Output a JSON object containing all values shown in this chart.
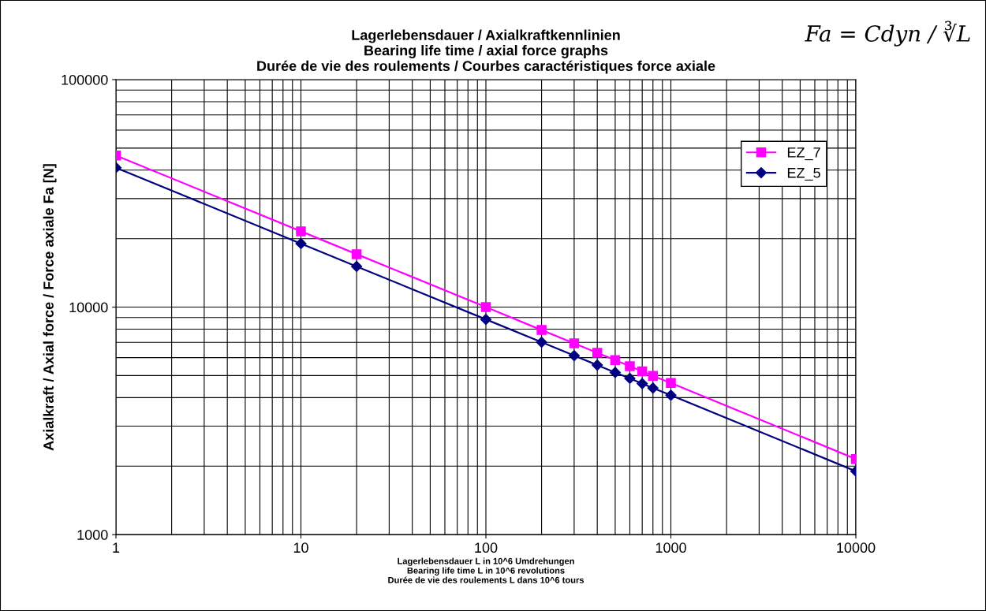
{
  "chart_data": {
    "type": "line",
    "title": "Lagerlebensdauer / Axialkraftkennlinien\nBearing life time / axial force graphs\nDurée de vie des roulements / Courbes caractéristiques force axiale",
    "xlabel": "Lagerlebensdauer L in 10^6 Umdrehungen\nBearing life time L in 10^6 revolutions\nDurée de vie des roulements L dans 10^6 tours",
    "ylabel": "Axialkraft / Axial force / Force axiale Fa [N]",
    "annotations": [
      "Fa = Cdyn / ∛L"
    ],
    "x": [
      1,
      10,
      20,
      100,
      200,
      300,
      400,
      500,
      600,
      700,
      800,
      1000,
      10000
    ],
    "series": [
      {
        "name": "EZ_7",
        "color": "#ff00ff",
        "marker": "square",
        "values": [
          46400,
          21540,
          17090,
          10000,
          7930,
          6930,
          6300,
          5850,
          5500,
          5220,
          4990,
          4640,
          2150
        ]
      },
      {
        "name": "EZ_5",
        "color": "#000080",
        "marker": "diamond",
        "values": [
          41000,
          19030,
          15100,
          8830,
          7010,
          6120,
          5560,
          5160,
          4860,
          4610,
          4410,
          4100,
          1900
        ]
      }
    ],
    "log": "xy",
    "xlim": [
      1,
      10000
    ],
    "ylim": [
      1000,
      100000
    ],
    "xticks": [
      1,
      10,
      100,
      1000,
      10000
    ],
    "yticks": [
      1000,
      10000,
      100000
    ],
    "grid": true,
    "legend": "top right",
    "line_style": "solid"
  }
}
